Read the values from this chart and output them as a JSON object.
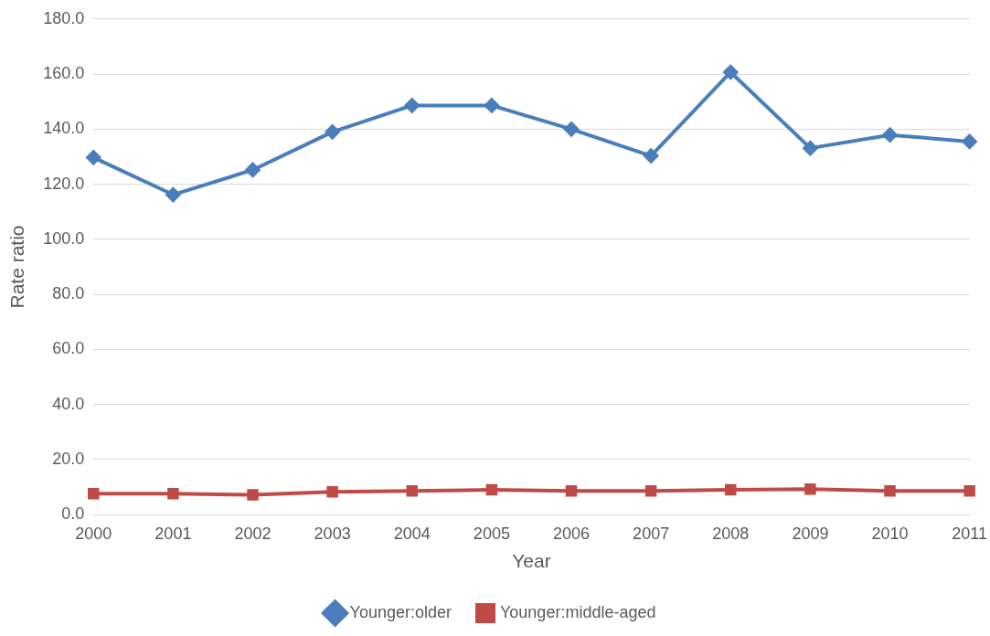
{
  "chart_data": {
    "type": "line",
    "xlabel": "Year",
    "ylabel": "Rate ratio",
    "categories": [
      "2000",
      "2001",
      "2002",
      "2003",
      "2004",
      "2005",
      "2006",
      "2007",
      "2008",
      "2009",
      "2010",
      "2011"
    ],
    "series": [
      {
        "name": "Younger:older",
        "color": "#4a7ebb",
        "marker": "diamond",
        "values": [
          129.7,
          116.2,
          125.2,
          139.0,
          148.6,
          148.6,
          140.0,
          130.3,
          160.7,
          133.1,
          137.9,
          135.5
        ]
      },
      {
        "name": "Younger:middle-aged",
        "color": "#be4b48",
        "marker": "square",
        "values": [
          7.6,
          7.6,
          7.2,
          8.3,
          8.6,
          9.0,
          8.6,
          8.6,
          9.0,
          9.3,
          8.6,
          8.6
        ]
      }
    ],
    "ylim": [
      0,
      180
    ],
    "yticks": [
      {
        "value": 0,
        "label": "0.0"
      },
      {
        "value": 20,
        "label": "20.0"
      },
      {
        "value": 40,
        "label": "40.0"
      },
      {
        "value": 60,
        "label": "60.0"
      },
      {
        "value": 80,
        "label": "80.0"
      },
      {
        "value": 100,
        "label": "100.0"
      },
      {
        "value": 120,
        "label": "120.0"
      },
      {
        "value": 140,
        "label": "140.0"
      },
      {
        "value": 160,
        "label": "160.0"
      },
      {
        "value": 180,
        "label": "180.0"
      }
    ],
    "grid": "y",
    "legend": "bottom",
    "line_style": "solid"
  }
}
